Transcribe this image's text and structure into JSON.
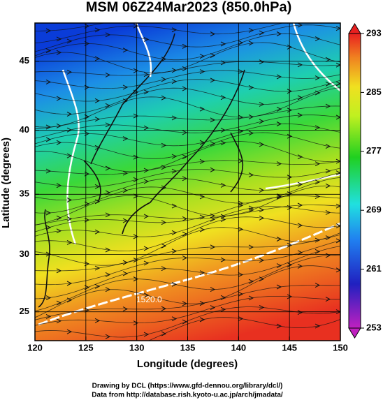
{
  "chart_data": {
    "type": "map",
    "title": "MSM 06Z24Mar2023 (850.0hPa)",
    "x_label": "Longitude (degrees)",
    "y_label": "Latitude  (degrees)",
    "projection": "mercator",
    "xlim": [
      120,
      150
    ],
    "xticks": [
      120,
      125,
      130,
      135,
      140,
      145,
      150
    ],
    "ylim": [
      22.4,
      47.6
    ],
    "yticks": [
      25,
      30,
      35,
      40,
      45
    ],
    "grid": true,
    "colorbar": {
      "lim": [
        253,
        293
      ],
      "ticks": [
        253,
        261,
        269,
        277,
        285,
        293
      ]
    },
    "annotations": [
      "1520.0"
    ],
    "footer": [
      "Drawing by DCL (https://www.gfd-dennou.org/library/dcl/)",
      "Data from http://database.rish.kyoto-u.ac.jp/arch/jmadata/"
    ]
  }
}
